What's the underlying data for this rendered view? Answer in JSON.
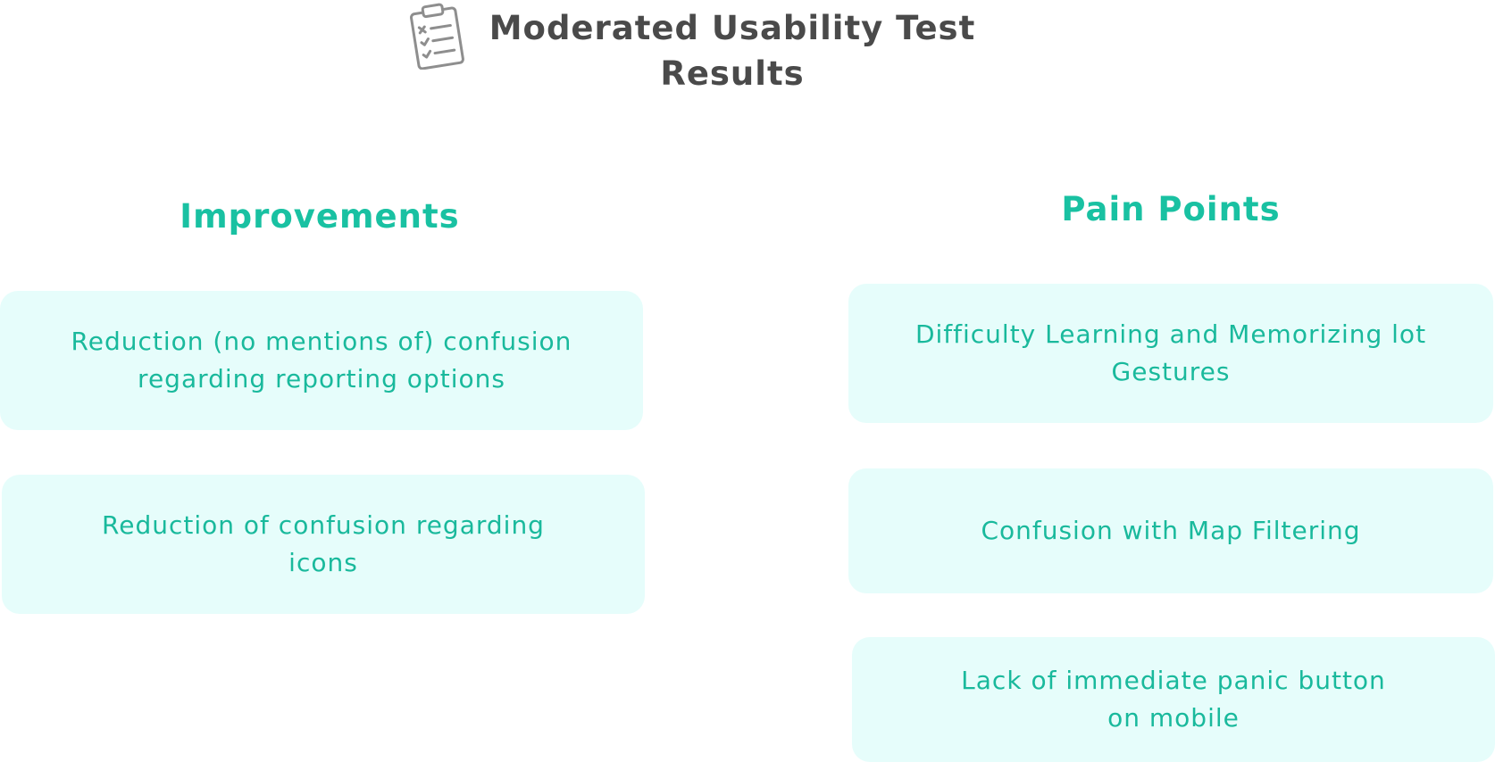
{
  "header": {
    "icon": "clipboard-checklist-icon",
    "title_line1": "Moderated Usability Test",
    "title_line2": "Results"
  },
  "colors": {
    "accent": "#19c1a2",
    "card_background": "#e6fdfb",
    "title": "#4a4a4a"
  },
  "improvements": {
    "heading": "Improvements",
    "items": [
      {
        "line1": "Reduction (no mentions of) confusion",
        "line2": "regarding reporting options"
      },
      {
        "line1": "Reduction of confusion regarding",
        "line2": "icons"
      }
    ]
  },
  "pain_points": {
    "heading": "Pain Points",
    "items": [
      {
        "line1": "Difficulty Learning and Memorizing lot",
        "line2": "Gestures"
      },
      {
        "line1": "Confusion with Map Filtering",
        "line2": ""
      },
      {
        "line1": "Lack of immediate panic button",
        "line2": "on mobile"
      }
    ]
  }
}
